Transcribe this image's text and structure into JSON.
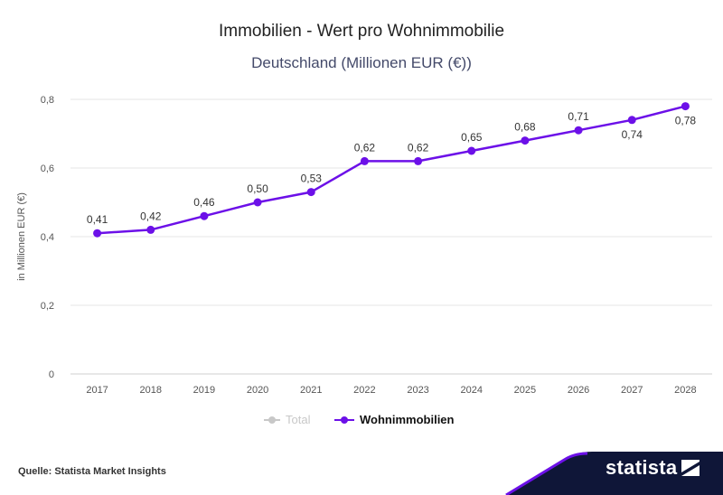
{
  "chart_data": {
    "type": "line",
    "title": "Immobilien - Wert pro Wohnimmobilie",
    "subtitle": "Deutschland (Millionen EUR (€))",
    "xlabel": "",
    "ylabel": "in Millionen EUR (€)",
    "ylim": [
      0,
      0.8
    ],
    "yticks": [
      "0",
      "0,2",
      "0,4",
      "0,6",
      "0,8"
    ],
    "ytick_values": [
      0,
      0.2,
      0.4,
      0.6,
      0.8
    ],
    "grid": true,
    "categories": [
      "2017",
      "2018",
      "2019",
      "2020",
      "2021",
      "2022",
      "2023",
      "2024",
      "2025",
      "2026",
      "2027",
      "2028"
    ],
    "series": [
      {
        "name": "Wohnimmobilien",
        "color": "#6c10e8",
        "values": [
          0.41,
          0.42,
          0.46,
          0.5,
          0.53,
          0.62,
          0.62,
          0.65,
          0.68,
          0.71,
          0.74,
          0.78
        ],
        "labels": [
          "0,41",
          "0,42",
          "0,46",
          "0,50",
          "0,53",
          "0,62",
          "0,62",
          "0,65",
          "0,68",
          "0,71",
          "0,74",
          "0,78"
        ]
      }
    ],
    "legend": [
      {
        "name": "Total",
        "active": false,
        "color": "#c8c8c8"
      },
      {
        "name": "Wohnimmobilien",
        "active": true,
        "color": "#6c10e8"
      }
    ]
  },
  "footer": {
    "source": "Quelle: Statista Market Insights",
    "brand": "statista"
  },
  "colors": {
    "accent": "#6c10e8",
    "brand_band": "#0f1638",
    "grid": "#e6e6e6"
  }
}
